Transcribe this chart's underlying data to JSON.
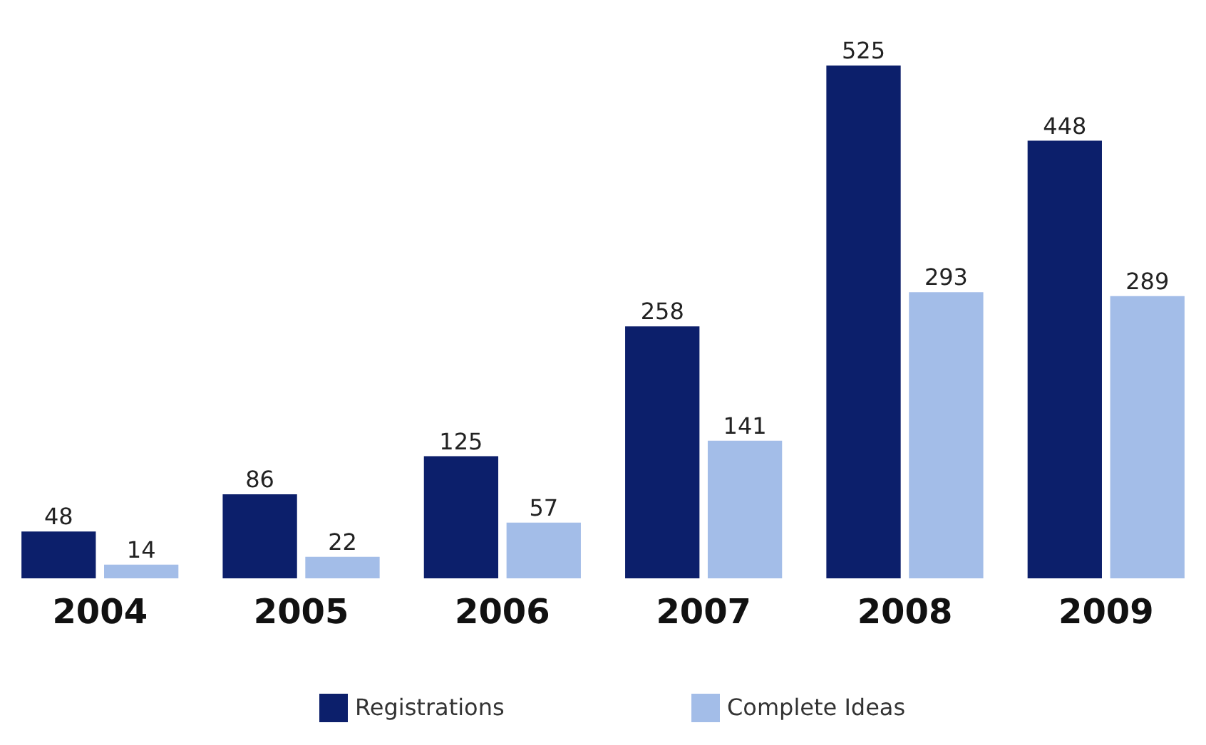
{
  "chart_data": {
    "type": "bar",
    "categories": [
      "2004",
      "2005",
      "2006",
      "2007",
      "2008",
      "2009"
    ],
    "series": [
      {
        "name": "Registrations",
        "color": "#0c1f6b",
        "values": [
          48,
          86,
          125,
          258,
          525,
          448
        ]
      },
      {
        "name": "Complete Ideas",
        "color": "#a3bde8",
        "values": [
          14,
          22,
          57,
          141,
          293,
          289
        ]
      }
    ],
    "data_labels": true,
    "legend": "bottom",
    "tick_labels": "x"
  }
}
